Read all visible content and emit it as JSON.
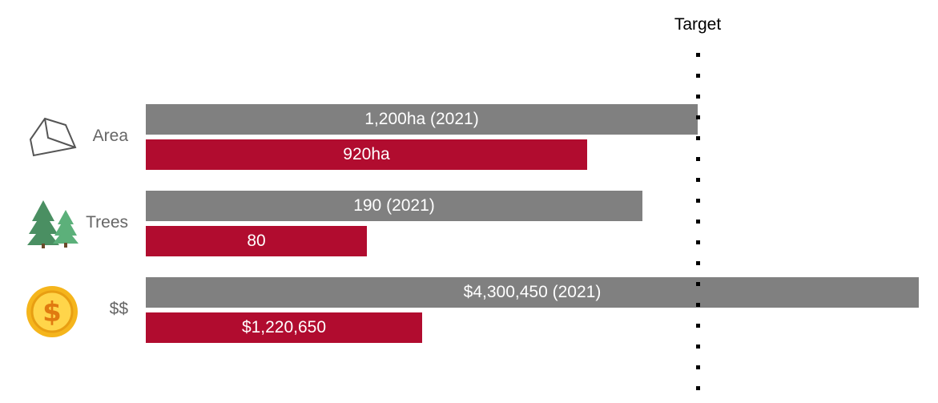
{
  "colors": {
    "previous": "#808080",
    "current": "#b10c2f",
    "category_label": "#666666"
  },
  "chart_data": {
    "type": "bar",
    "orientation": "horizontal",
    "categories": [
      "Area",
      "Trees",
      "$$"
    ],
    "category_icons": [
      "polygon-area-icon",
      "pine-trees-icon",
      "dollar-coin-icon"
    ],
    "series": [
      {
        "values": [
          1.0,
          0.9,
          1.4
        ],
        "labels": [
          "1,200ha (2021)",
          "190 (2021)",
          "$4,300,450 (2021)"
        ]
      },
      {
        "values": [
          0.8,
          0.4,
          0.5
        ],
        "labels": [
          "920ha",
          "80",
          "$1,220,650"
        ]
      }
    ],
    "target": {
      "label": "Target",
      "value": 1.0
    },
    "xlim": [
      0,
      1.4
    ],
    "grid": false,
    "legend": "none"
  }
}
